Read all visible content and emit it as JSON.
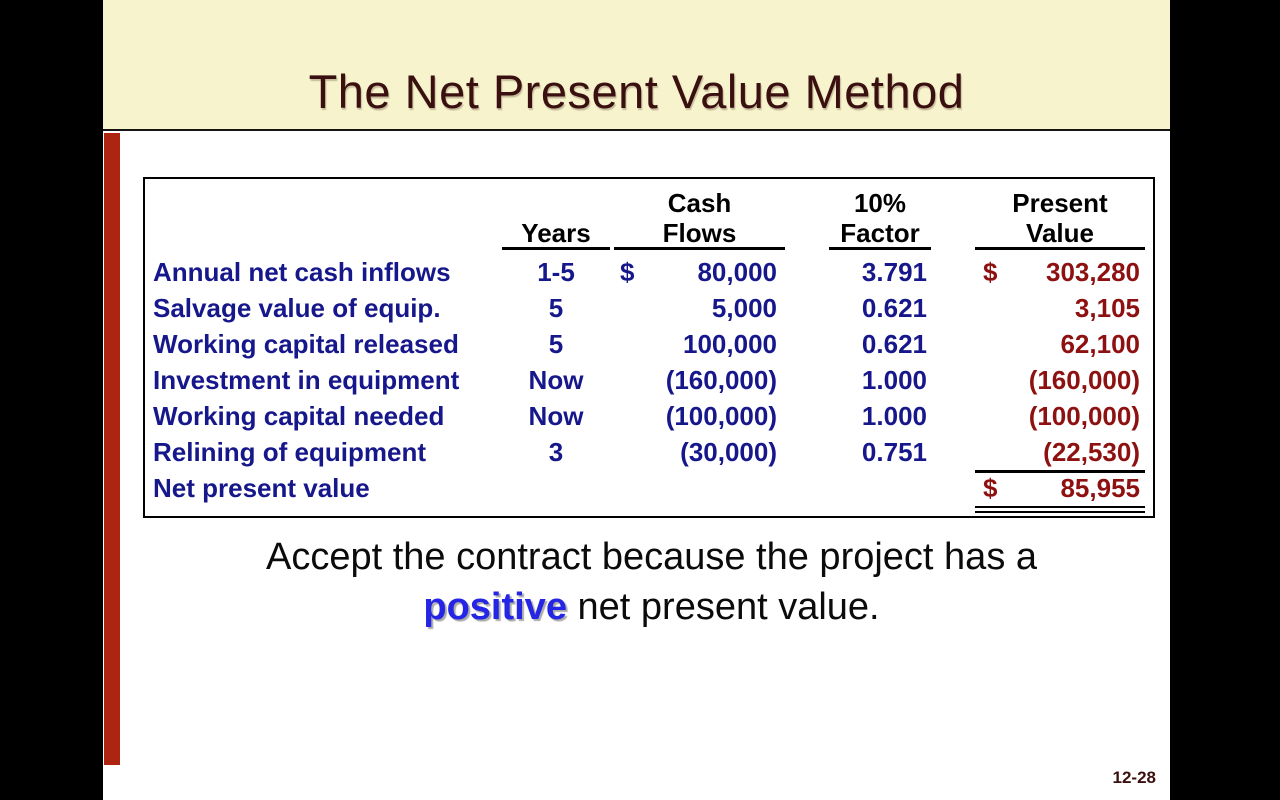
{
  "slide": {
    "title": "The Net Present Value Method",
    "page_number": "12-28"
  },
  "table": {
    "headers": {
      "cash_top": "Cash",
      "cash_bottom": "Flows",
      "factor_top": "10%",
      "factor_bottom": "Factor",
      "pv_top": "Present",
      "pv_bottom": "Value",
      "years_bottom": "Years"
    },
    "rows": [
      {
        "label": "Annual net cash inflows",
        "years": "1-5",
        "cash_currency": "$",
        "cash": "80,000",
        "factor": "3.791",
        "pv_currency": "$",
        "pv": "303,280"
      },
      {
        "label": "Salvage value of equip.",
        "years": "5",
        "cash_currency": "",
        "cash": "5,000",
        "factor": "0.621",
        "pv_currency": "",
        "pv": "3,105"
      },
      {
        "label": "Working capital released",
        "years": "5",
        "cash_currency": "",
        "cash": "100,000",
        "factor": "0.621",
        "pv_currency": "",
        "pv": "62,100"
      },
      {
        "label": "Investment in equipment",
        "years": "Now",
        "cash_currency": "",
        "cash": "(160,000)",
        "factor": "1.000",
        "pv_currency": "",
        "pv": "(160,000)"
      },
      {
        "label": "Working capital needed",
        "years": "Now",
        "cash_currency": "",
        "cash": "(100,000)",
        "factor": "1.000",
        "pv_currency": "",
        "pv": "(100,000)"
      },
      {
        "label": "Relining of equipment",
        "years": "3",
        "cash_currency": "",
        "cash": "(30,000)",
        "factor": "0.751",
        "pv_currency": "",
        "pv": "(22,530)"
      },
      {
        "label": "Net present value",
        "years": "",
        "cash_currency": "",
        "cash": "",
        "factor": "",
        "pv_currency": "$",
        "pv": "85,955"
      }
    ]
  },
  "caption": {
    "before_highlight": "Accept the contract because the project has a",
    "highlight": "positive",
    "after_highlight": " net present value."
  },
  "colors": {
    "band_cream": "#F6F3CD",
    "accent_red_bar": "#AD2511",
    "title_text": "#3A0F0F",
    "table_label_blue": "#17178C",
    "present_value_red": "#8E1111",
    "highlight_blue": "#2525E6"
  }
}
